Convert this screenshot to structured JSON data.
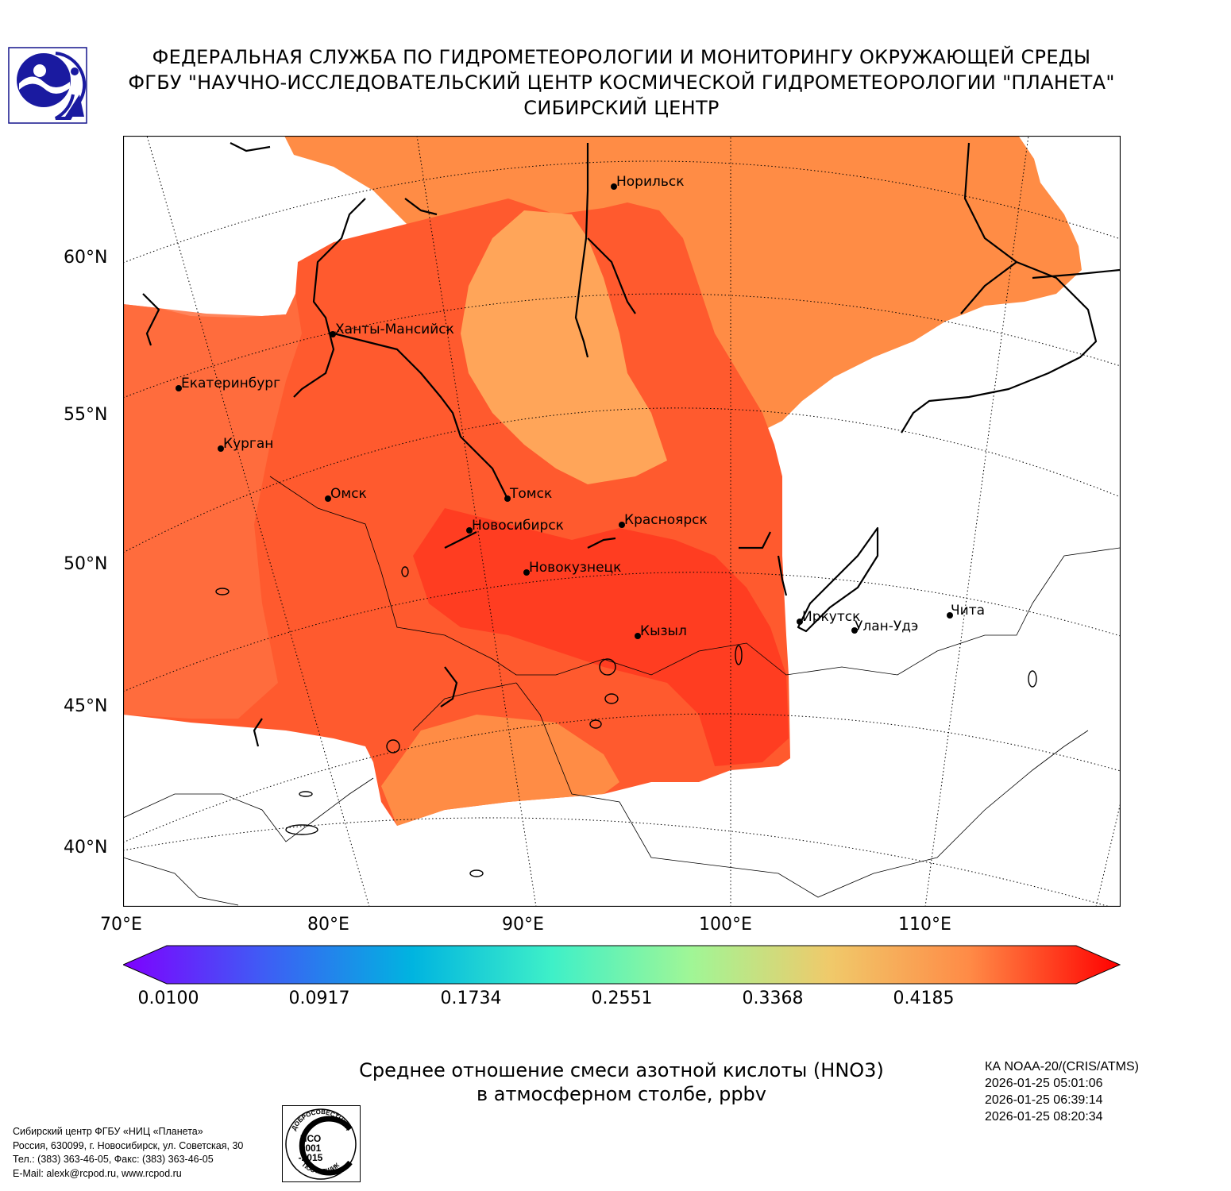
{
  "header": {
    "line1": "ФЕДЕРАЛЬНАЯ СЛУЖБА ПО ГИДРОМЕТЕОРОЛОГИИ И МОНИТОРИНГУ ОКРУЖАЮЩЕЙ СРЕДЫ",
    "line2": "ФГБУ \"НАУЧНО-ИССЛЕДОВАТЕЛЬСКИЙ ЦЕНТР КОСМИЧЕСКОЙ ГИДРОМЕТЕОРОЛОГИИ \"ПЛАНЕТА\"",
    "line3": "СИБИРСКИЙ ЦЕНТР"
  },
  "map": {
    "lat_labels": [
      "60°N",
      "55°N",
      "50°N",
      "45°N",
      "40°N"
    ],
    "lon_labels": [
      "70°E",
      "80°E",
      "90°E",
      "100°E",
      "110°E"
    ],
    "cities": [
      {
        "name": "Норильск"
      },
      {
        "name": "Ханты-Мансийск"
      },
      {
        "name": "Екатеринбург"
      },
      {
        "name": "Курган"
      },
      {
        "name": "Омск"
      },
      {
        "name": "Томск"
      },
      {
        "name": "Новосибирск"
      },
      {
        "name": "Красноярск"
      },
      {
        "name": "Новокузнецк"
      },
      {
        "name": "Иркутск"
      },
      {
        "name": "Улан-Удэ"
      },
      {
        "name": "Чита"
      },
      {
        "name": "Кызыл"
      }
    ]
  },
  "colorbar": {
    "ticks": [
      "0.0100",
      "0.0917",
      "0.1734",
      "0.2551",
      "0.3368",
      "0.4185"
    ],
    "colors": [
      "#7f00ff",
      "#3f5cf5",
      "#00b4e0",
      "#3ef0c8",
      "#a0f696",
      "#f0c96a",
      "#ff8a46",
      "#ff0000"
    ]
  },
  "product": {
    "title_line1": "Среднее отношение смеси азотной кислоты (HNO3)",
    "title_line2": "в атмосферном столбе, ppbv"
  },
  "satellite": {
    "name": "КА NOAA-20/(CRIS/ATMS)",
    "times": [
      "2026-01-25 05:01:06",
      "2026-01-25 06:39:14",
      "2026-01-25 08:20:34"
    ]
  },
  "contact": {
    "line1": "Сибирский центр ФГБУ «НИЦ «Планета»",
    "line2": "Россия, 630099, г. Новосибирск, ул. Советская, 30",
    "line3": "Тел.: (383) 363-46-05, Факс: (383) 363-46-05",
    "line4": "E-Mail: alexk@rcpod.ru, www.rcpod.ru"
  },
  "iso_badge": {
    "top_text": "ДОБРОСОВЕСТНЫЙ",
    "line1": "ИСО",
    "line2": "9001",
    "line3": "-2015",
    "bottom_text": "ПОСТАВЩИК"
  }
}
